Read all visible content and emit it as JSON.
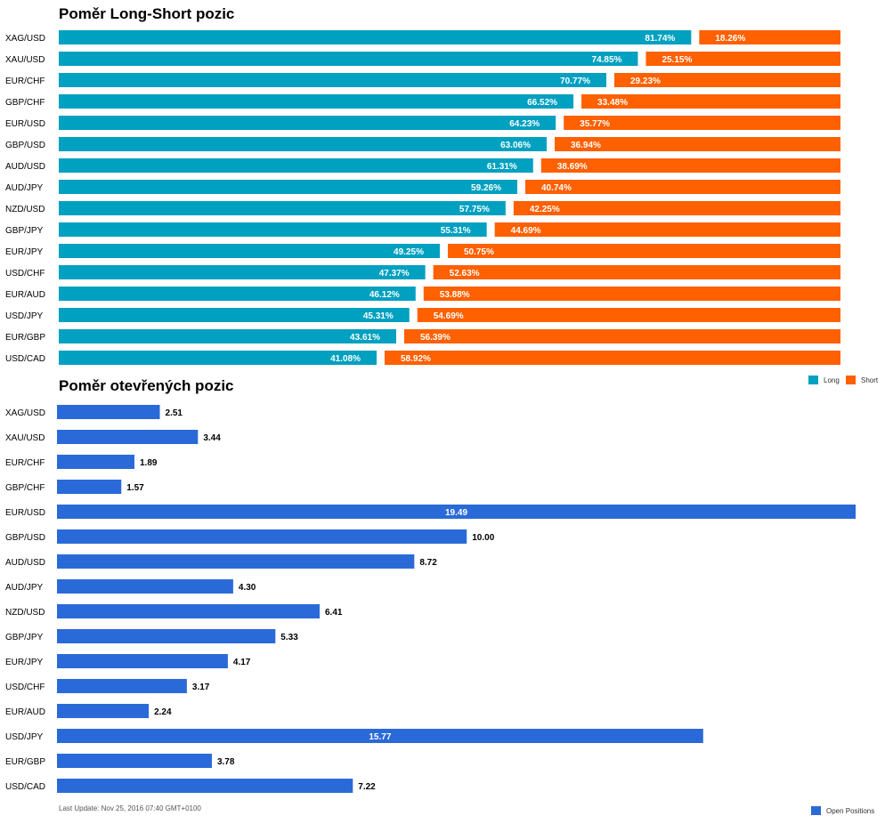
{
  "chart_data": [
    {
      "type": "bar",
      "stacked": true,
      "orientation": "horizontal",
      "title": "Poměr Long-Short pozic",
      "categories": [
        "XAG/USD",
        "XAU/USD",
        "EUR/CHF",
        "GBP/CHF",
        "EUR/USD",
        "GBP/USD",
        "AUD/USD",
        "AUD/JPY",
        "NZD/USD",
        "GBP/JPY",
        "EUR/JPY",
        "USD/CHF",
        "EUR/AUD",
        "USD/JPY",
        "EUR/GBP",
        "USD/CAD"
      ],
      "series": [
        {
          "name": "Long",
          "color": "#00a0c0",
          "values": [
            81.74,
            74.85,
            70.77,
            66.52,
            64.23,
            63.06,
            61.31,
            59.26,
            57.75,
            55.31,
            49.25,
            47.37,
            46.12,
            45.31,
            43.61,
            41.08
          ],
          "labels": [
            "81.74%",
            "74.85%",
            "70.77%",
            "66.52%",
            "64.23%",
            "63.06%",
            "61.31%",
            "59.26%",
            "57.75%",
            "55.31%",
            "49.25%",
            "47.37%",
            "46.12%",
            "45.31%",
            "43.61%",
            "41.08%"
          ]
        },
        {
          "name": "Short",
          "color": "#ff6000",
          "values": [
            18.26,
            25.15,
            29.23,
            33.48,
            35.77,
            36.94,
            38.69,
            40.74,
            42.25,
            44.69,
            50.75,
            52.63,
            53.88,
            54.69,
            56.39,
            58.92
          ],
          "labels": [
            "18.26%",
            "25.15%",
            "29.23%",
            "33.48%",
            "35.77%",
            "36.94%",
            "38.69%",
            "40.74%",
            "42.25%",
            "44.69%",
            "50.75%",
            "52.63%",
            "53.88%",
            "54.69%",
            "56.39%",
            "58.92%"
          ]
        }
      ],
      "xlim": [
        0,
        100
      ],
      "legend_position": "bottom-right"
    },
    {
      "type": "bar",
      "orientation": "horizontal",
      "title": "Poměr otevřených pozic",
      "categories": [
        "XAG/USD",
        "XAU/USD",
        "EUR/CHF",
        "GBP/CHF",
        "EUR/USD",
        "GBP/USD",
        "AUD/USD",
        "AUD/JPY",
        "NZD/USD",
        "GBP/JPY",
        "EUR/JPY",
        "USD/CHF",
        "EUR/AUD",
        "USD/JPY",
        "EUR/GBP",
        "USD/CAD"
      ],
      "series": [
        {
          "name": "Open Positions",
          "color": "#2a6ad8",
          "values": [
            2.51,
            3.44,
            1.89,
            1.57,
            19.49,
            10.0,
            8.72,
            4.3,
            6.41,
            5.33,
            4.17,
            3.17,
            2.24,
            15.77,
            3.78,
            7.22
          ],
          "labels": [
            "2.51",
            "3.44",
            "1.89",
            "1.57",
            "19.49",
            "10.00",
            "8.72",
            "4.30",
            "6.41",
            "5.33",
            "4.17",
            "3.17",
            "2.24",
            "15.77",
            "3.78",
            "7.22"
          ]
        }
      ],
      "xlim": [
        0,
        19.49
      ],
      "legend_position": "bottom-right"
    }
  ],
  "footer": {
    "last_update": "Last Update: Nov 25, 2016 07:40 GMT+0100"
  }
}
